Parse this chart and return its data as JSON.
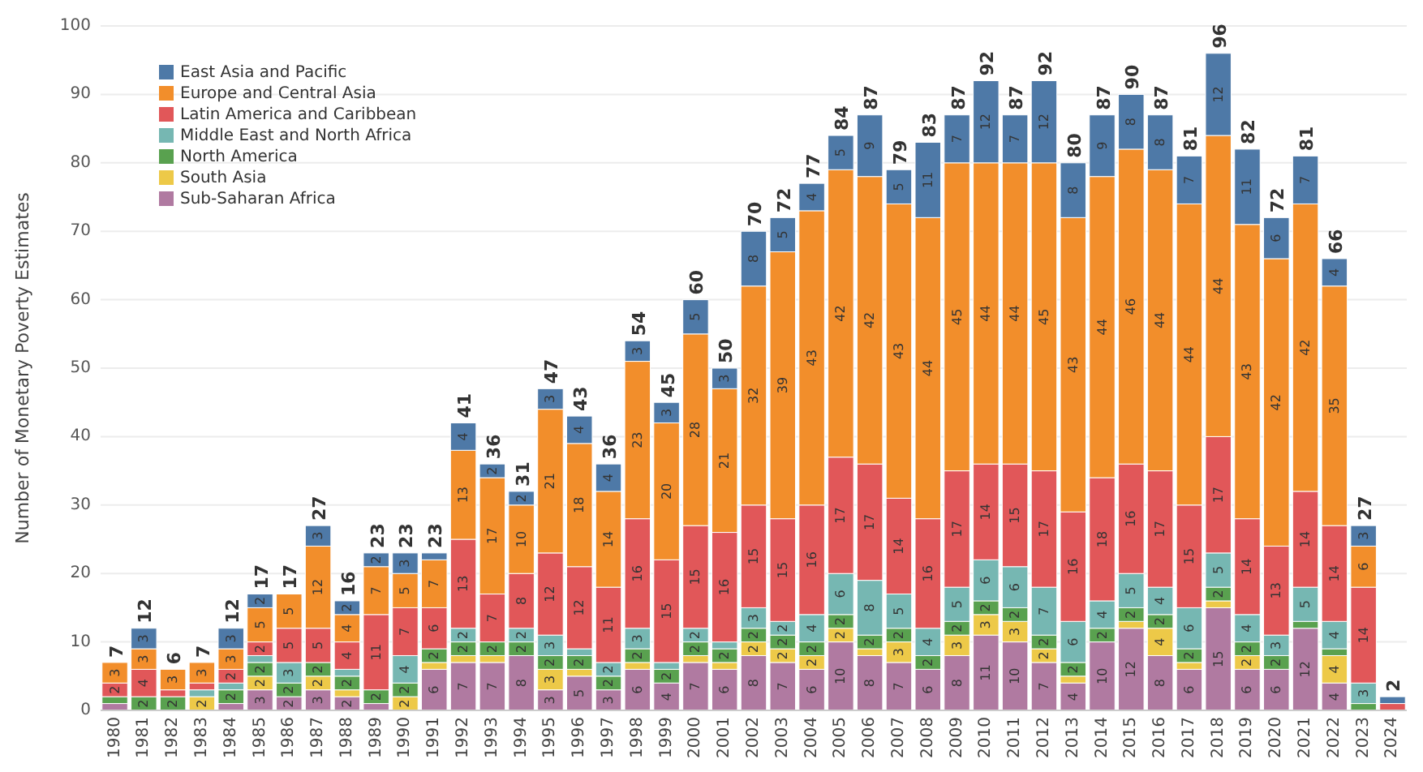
{
  "chart_data": {
    "type": "bar",
    "stacked": true,
    "ylabel": "Number of Monetary Poverty Estimates",
    "categories": [
      "1980",
      "1981",
      "1982",
      "1983",
      "1984",
      "1985",
      "1986",
      "1987",
      "1988",
      "1989",
      "1990",
      "1991",
      "1992",
      "1993",
      "1994",
      "1995",
      "1996",
      "1997",
      "1998",
      "1999",
      "2000",
      "2001",
      "2002",
      "2003",
      "2004",
      "2005",
      "2006",
      "2007",
      "2008",
      "2009",
      "2010",
      "2011",
      "2012",
      "2013",
      "2014",
      "2015",
      "2016",
      "2017",
      "2018",
      "2019",
      "2020",
      "2021",
      "2022",
      "2023",
      "2024"
    ],
    "ylim": [
      0,
      100
    ],
    "yticks": [
      0,
      10,
      20,
      30,
      40,
      50,
      60,
      70,
      80,
      90,
      100
    ],
    "grid": "y",
    "legend": "top left",
    "series": [
      {
        "name": "Sub-Saharan Africa",
        "color": "#b07aa1",
        "values": [
          1,
          0,
          0,
          0,
          1,
          3,
          2,
          3,
          2,
          1,
          0,
          6,
          7,
          7,
          8,
          3,
          5,
          3,
          6,
          4,
          7,
          6,
          8,
          7,
          6,
          10,
          8,
          7,
          6,
          8,
          11,
          10,
          7,
          4,
          10,
          12,
          8,
          6,
          15,
          6,
          6,
          12,
          4,
          0,
          0
        ],
        "value_labels": [
          null,
          null,
          null,
          null,
          null,
          "3",
          "2",
          "3",
          "2",
          null,
          null,
          "6",
          "7",
          "7",
          "8",
          "3",
          "5",
          "3",
          "6",
          "4",
          "7",
          "6",
          "8",
          "7",
          "6",
          "10",
          "8",
          "7",
          "6",
          "8",
          "11",
          "10",
          "7",
          "4",
          "10",
          "12",
          "8",
          "6",
          "15",
          "6",
          "6",
          "12",
          "4",
          null,
          null
        ]
      },
      {
        "name": "South Asia",
        "color": "#edc948",
        "values": [
          0,
          0,
          0,
          2,
          0,
          2,
          0,
          2,
          1,
          0,
          2,
          1,
          1,
          1,
          0,
          3,
          1,
          0,
          1,
          0,
          1,
          1,
          2,
          2,
          2,
          2,
          1,
          3,
          0,
          3,
          3,
          3,
          2,
          1,
          0,
          1,
          4,
          1,
          1,
          2,
          0,
          0,
          4,
          0,
          0
        ],
        "value_labels": [
          null,
          null,
          null,
          "2",
          null,
          "2",
          null,
          "2",
          null,
          null,
          "2",
          null,
          null,
          null,
          null,
          "3",
          null,
          null,
          null,
          null,
          null,
          null,
          "2",
          "2",
          "2",
          "2",
          null,
          "3",
          null,
          "3",
          "3",
          "3",
          "2",
          null,
          null,
          null,
          "4",
          null,
          null,
          "2",
          null,
          null,
          "4",
          null,
          null
        ]
      },
      {
        "name": "North America",
        "color": "#59a14f",
        "values": [
          1,
          2,
          2,
          0,
          2,
          2,
          2,
          2,
          2,
          2,
          2,
          2,
          2,
          2,
          2,
          2,
          2,
          2,
          2,
          2,
          2,
          2,
          2,
          2,
          2,
          2,
          2,
          2,
          2,
          2,
          2,
          2,
          2,
          2,
          2,
          2,
          2,
          2,
          2,
          2,
          2,
          1,
          1,
          1,
          0
        ],
        "value_labels": [
          null,
          "2",
          "2",
          null,
          "2",
          "2",
          "2",
          "2",
          "2",
          "2",
          "2",
          "2",
          "2",
          "2",
          "2",
          "2",
          "2",
          "2",
          "2",
          "2",
          "2",
          "2",
          "2",
          "2",
          "2",
          "2",
          "2",
          "2",
          "2",
          "2",
          "2",
          "2",
          "2",
          "2",
          "2",
          "2",
          "2",
          "2",
          "2",
          "2",
          "2",
          null,
          null,
          null,
          null
        ]
      },
      {
        "name": "Middle East and North Africa",
        "color": "#76b7b2",
        "values": [
          0,
          0,
          0,
          1,
          1,
          1,
          3,
          0,
          1,
          0,
          4,
          0,
          2,
          0,
          2,
          3,
          1,
          2,
          3,
          1,
          2,
          1,
          3,
          2,
          4,
          6,
          8,
          5,
          4,
          5,
          6,
          6,
          7,
          6,
          4,
          5,
          4,
          6,
          5,
          4,
          3,
          5,
          4,
          3,
          0
        ],
        "value_labels": [
          null,
          null,
          null,
          null,
          null,
          null,
          "3",
          null,
          null,
          null,
          "4",
          null,
          "2",
          null,
          "2",
          "3",
          null,
          "2",
          "3",
          null,
          "2",
          null,
          "3",
          "2",
          "4",
          "6",
          "8",
          "5",
          "4",
          "5",
          "6",
          "6",
          "7",
          "6",
          "4",
          "5",
          "4",
          "6",
          "5",
          "4",
          "3",
          "5",
          "4",
          "3",
          null
        ]
      },
      {
        "name": "Latin America and Caribbean",
        "color": "#e15759",
        "values": [
          2,
          4,
          1,
          1,
          2,
          2,
          5,
          5,
          4,
          11,
          7,
          6,
          13,
          7,
          8,
          12,
          12,
          11,
          16,
          15,
          15,
          16,
          15,
          15,
          16,
          17,
          17,
          14,
          16,
          17,
          14,
          15,
          17,
          16,
          18,
          16,
          17,
          15,
          17,
          14,
          13,
          14,
          14,
          14,
          1
        ],
        "value_labels": [
          "2",
          "4",
          null,
          null,
          "2",
          "2",
          "5",
          "5",
          "4",
          "11",
          "7",
          "6",
          "13",
          "7",
          "8",
          "12",
          "12",
          "11",
          "16",
          "15",
          "15",
          "16",
          "15",
          "15",
          "16",
          "17",
          "17",
          "14",
          "16",
          "17",
          "14",
          "15",
          "17",
          "16",
          "18",
          "16",
          "17",
          "15",
          "17",
          "14",
          "13",
          "14",
          "14",
          "14",
          null
        ]
      },
      {
        "name": "Europe and Central Asia",
        "color": "#f28e2b",
        "values": [
          3,
          3,
          3,
          3,
          3,
          5,
          5,
          12,
          4,
          7,
          5,
          7,
          13,
          17,
          10,
          21,
          18,
          14,
          23,
          20,
          28,
          21,
          32,
          39,
          43,
          42,
          42,
          43,
          44,
          45,
          44,
          44,
          45,
          43,
          44,
          46,
          44,
          44,
          44,
          43,
          42,
          42,
          35,
          6,
          0
        ],
        "value_labels": [
          "3",
          "3",
          "3",
          "3",
          "3",
          "5",
          "5",
          "12",
          "4",
          "7",
          "5",
          "7",
          "13",
          "17",
          "10",
          "21",
          "18",
          "14",
          "23",
          "20",
          "28",
          "21",
          "32",
          "39",
          "43",
          "42",
          "42",
          "43",
          "44",
          "45",
          "44",
          "44",
          "45",
          "43",
          "44",
          "46",
          "44",
          "44",
          "44",
          "43",
          "42",
          "42",
          "35",
          "6",
          null
        ]
      },
      {
        "name": "East Asia and Pacific",
        "color": "#4e79a7",
        "values": [
          0,
          3,
          0,
          0,
          3,
          2,
          0,
          3,
          2,
          2,
          3,
          1,
          4,
          2,
          2,
          3,
          4,
          4,
          3,
          3,
          5,
          3,
          8,
          5,
          4,
          5,
          9,
          5,
          11,
          7,
          12,
          7,
          12,
          8,
          9,
          8,
          8,
          7,
          12,
          11,
          6,
          7,
          4,
          3,
          1
        ],
        "value_labels": [
          null,
          "3",
          null,
          null,
          "3",
          "2",
          null,
          "3",
          "2",
          "2",
          "3",
          null,
          "4",
          "2",
          "2",
          "3",
          "4",
          "4",
          "3",
          "3",
          "5",
          "3",
          "8",
          "5",
          "4",
          "5",
          "9",
          "5",
          "11",
          "7",
          "12",
          "7",
          "12",
          "8",
          "9",
          "8",
          "8",
          "7",
          "12",
          "11",
          "6",
          "7",
          "4",
          "3",
          null
        ]
      }
    ],
    "totals": [
      "7",
      "12",
      "6",
      "7",
      "12",
      "17",
      "17",
      "27",
      "16",
      "23",
      "23",
      "23",
      "41",
      "36",
      "31",
      "47",
      "43",
      "36",
      "54",
      "45",
      "60",
      "50",
      "70",
      "72",
      "77",
      "84",
      "87",
      "79",
      "83",
      "87",
      "92",
      "87",
      "92",
      "80",
      "87",
      "90",
      "87",
      "81",
      "96",
      "82",
      "72",
      "81",
      "66",
      "27",
      "2"
    ]
  }
}
